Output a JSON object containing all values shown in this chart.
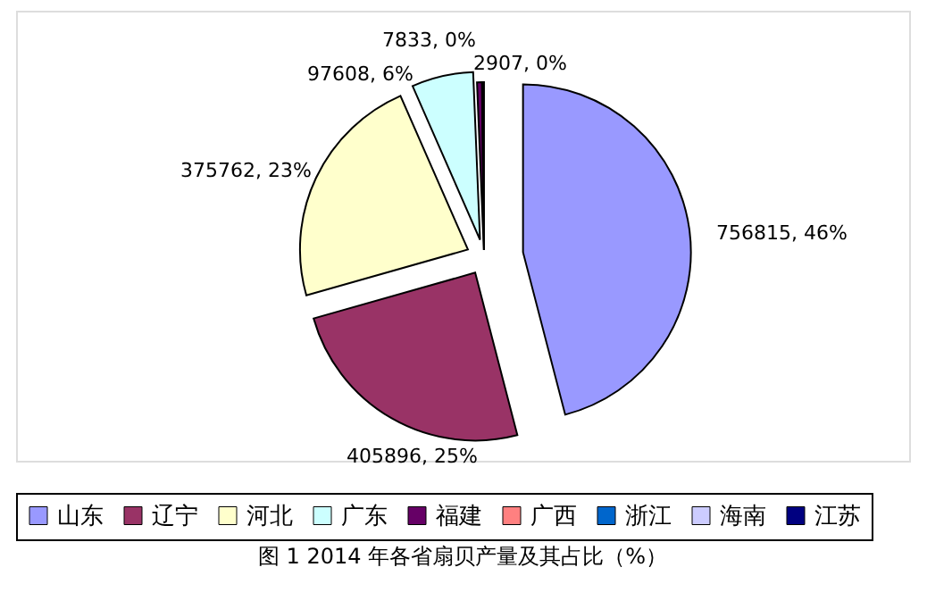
{
  "chart_data": {
    "type": "pie",
    "title": "图 1 2014 年各省扇贝产量及其占比（%）",
    "categories": [
      "山东",
      "辽宁",
      "河北",
      "广东",
      "福建",
      "广西",
      "浙江",
      "海南",
      "江苏"
    ],
    "values": [
      756815,
      405896,
      375762,
      97608,
      7833,
      null,
      null,
      null,
      2907
    ],
    "value_labels": [
      "756815, 46%",
      "405896, 25%",
      "375762, 23%",
      "97608, 6%",
      "7833, 0%",
      null,
      null,
      null,
      "2907, 0%"
    ],
    "colors": [
      "#9999ff",
      "#993366",
      "#ffffcc",
      "#ccffff",
      "#660066",
      "#ff8080",
      "#0066cc",
      "#ccccff",
      "#000080"
    ],
    "legend": "bottom"
  }
}
